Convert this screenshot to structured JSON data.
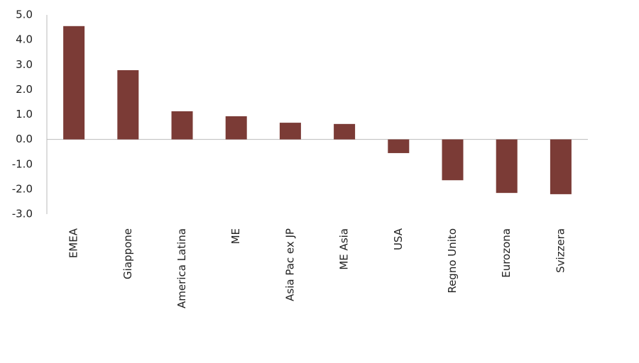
{
  "chart_data": {
    "type": "bar",
    "categories": [
      "EMEA",
      "Giappone",
      "America Latina",
      "ME",
      "Asia Pac ex JP",
      "ME Asia",
      "USA",
      "Regno Unito",
      "Eurozona",
      "Svizzera"
    ],
    "values": [
      4.55,
      2.78,
      1.13,
      0.93,
      0.67,
      0.62,
      -0.55,
      -1.64,
      -2.15,
      -2.2
    ],
    "color": "#7b3b36",
    "ylim": [
      -3,
      5
    ],
    "yticks": [
      {
        "value": 5,
        "label": "5.0"
      },
      {
        "value": 4,
        "label": "4.0"
      },
      {
        "value": 3,
        "label": "3.0"
      },
      {
        "value": 2,
        "label": "2.0"
      },
      {
        "value": 1,
        "label": "1.0"
      },
      {
        "value": 0,
        "label": "0.0"
      },
      {
        "value": -1,
        "label": "-1.0"
      },
      {
        "value": -2,
        "label": "-2.0"
      },
      {
        "value": -3,
        "label": "-3.0"
      }
    ],
    "grid": false
  }
}
